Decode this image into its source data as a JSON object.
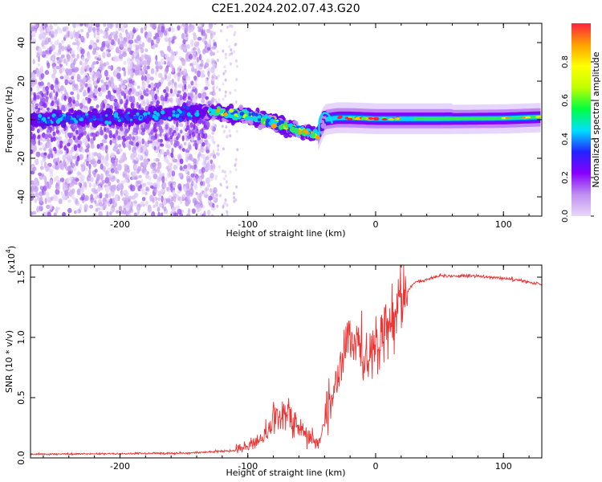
{
  "title": "C2E1.2024.202.07.43.G20",
  "chart_data": [
    {
      "type": "heatmap",
      "xlabel": "Height of straight line (km)",
      "ylabel": "Frequency (Hz)",
      "xlim": [
        -270,
        130
      ],
      "ylim": [
        -50,
        50
      ],
      "xticks": [
        -200,
        -100,
        0,
        100
      ],
      "yticks": [
        -40,
        -20,
        0,
        20,
        40
      ],
      "colorbar": {
        "label": "Normalized spectral amplitude",
        "range": [
          0,
          1
        ],
        "ticks": [
          0.0,
          0.2,
          0.4,
          0.6,
          0.8
        ],
        "stops": [
          "#e8d8f8",
          "#c090f0",
          "#8800ff",
          "#2222ff",
          "#00e0ff",
          "#00ff40",
          "#c0ff00",
          "#ffff00",
          "#ffa000",
          "#ff2040"
        ]
      },
      "ridge": [
        [
          -270,
          0
        ],
        [
          -200,
          1
        ],
        [
          -130,
          4
        ],
        [
          -100,
          2
        ],
        [
          -80,
          -1
        ],
        [
          -60,
          -6
        ],
        [
          -45,
          -8
        ],
        [
          -40,
          0
        ],
        [
          -30,
          1
        ],
        [
          -20,
          1
        ],
        [
          0,
          0.5
        ],
        [
          50,
          0.5
        ],
        [
          100,
          0.8
        ],
        [
          130,
          1.5
        ]
      ]
    },
    {
      "type": "line",
      "xlabel": "Height of straight line (km)",
      "ylabel": "SNR (10 * v/v)",
      "scale_label": "(x10",
      "scale_exp": "4",
      "scale_close": ")",
      "xlim": [
        -270,
        130
      ],
      "ylim": [
        0,
        1.6
      ],
      "xticks": [
        -200,
        -100,
        0,
        100
      ],
      "yticks": [
        0.0,
        0.5,
        1.0,
        1.5
      ],
      "color": "#ee3333",
      "envelope": [
        [
          -270,
          0.03
        ],
        [
          -150,
          0.04
        ],
        [
          -110,
          0.06
        ],
        [
          -95,
          0.12
        ],
        [
          -85,
          0.22
        ],
        [
          -75,
          0.35
        ],
        [
          -70,
          0.4
        ],
        [
          -62,
          0.28
        ],
        [
          -55,
          0.2
        ],
        [
          -45,
          0.12
        ],
        [
          -38,
          0.35
        ],
        [
          -30,
          0.65
        ],
        [
          -22,
          1.0
        ],
        [
          -15,
          0.9
        ],
        [
          -5,
          0.85
        ],
        [
          0,
          0.9
        ],
        [
          10,
          1.1
        ],
        [
          18,
          1.3
        ],
        [
          30,
          1.45
        ],
        [
          50,
          1.51
        ],
        [
          80,
          1.51
        ],
        [
          110,
          1.48
        ],
        [
          130,
          1.44
        ]
      ]
    }
  ]
}
